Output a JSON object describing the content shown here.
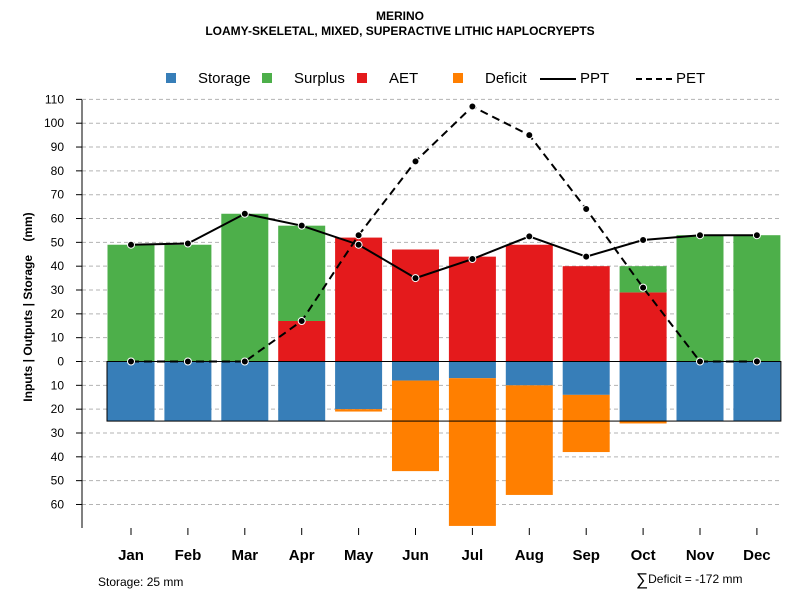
{
  "chart_data": {
    "type": "bar",
    "title": "MERINO",
    "subtitle": "LOAMY-SKELETAL, MIXED, SUPERACTIVE LITHIC HAPLOCRYEPTS",
    "ylabel": "Inputs | Outputs | Storage    (mm)",
    "xlabel": "",
    "categories": [
      "Jan",
      "Feb",
      "Mar",
      "Apr",
      "May",
      "Jun",
      "Jul",
      "Aug",
      "Sep",
      "Oct",
      "Nov",
      "Dec"
    ],
    "yticks_upper": [
      0,
      10,
      20,
      30,
      40,
      50,
      60,
      70,
      80,
      90,
      100,
      110
    ],
    "yticks_lower": [
      10,
      20,
      30,
      40,
      50,
      60
    ],
    "ylim": [
      -70,
      110
    ],
    "grid": true,
    "storage_capacity": 25,
    "series": [
      {
        "name": "Storage",
        "color": "#377EB8",
        "kind": "bar-below",
        "values": [
          25,
          25,
          25,
          25,
          20,
          8,
          7,
          10,
          14,
          25,
          25,
          25
        ]
      },
      {
        "name": "Surplus",
        "color": "#4DAF4A",
        "kind": "bar-above",
        "values": [
          49,
          49,
          62,
          40,
          0,
          0,
          0,
          0,
          0,
          11,
          53,
          53
        ]
      },
      {
        "name": "AET",
        "color": "#E41A1C",
        "kind": "bar-above",
        "values": [
          0,
          0,
          0,
          17,
          52,
          47,
          44,
          49,
          40,
          29,
          0,
          0
        ]
      },
      {
        "name": "Deficit",
        "color": "#FF7F00",
        "kind": "bar-below",
        "values": [
          0,
          0,
          0,
          0,
          1,
          38,
          62,
          46,
          24,
          1,
          0,
          0
        ]
      },
      {
        "name": "PPT",
        "color": "#000000",
        "kind": "line",
        "style": "solid",
        "values": [
          49,
          49.5,
          62,
          57,
          49,
          35,
          43,
          52.5,
          44,
          51,
          53,
          53
        ]
      },
      {
        "name": "PET",
        "color": "#000000",
        "kind": "line",
        "style": "dashed",
        "values": [
          0,
          0,
          0,
          17,
          53,
          84,
          107,
          95,
          64,
          31,
          0,
          0
        ]
      }
    ]
  },
  "footnotes": {
    "storage": "Storage: 25 mm",
    "deficit_symbol": "∑",
    "deficit": "Deficit = -172 mm"
  }
}
